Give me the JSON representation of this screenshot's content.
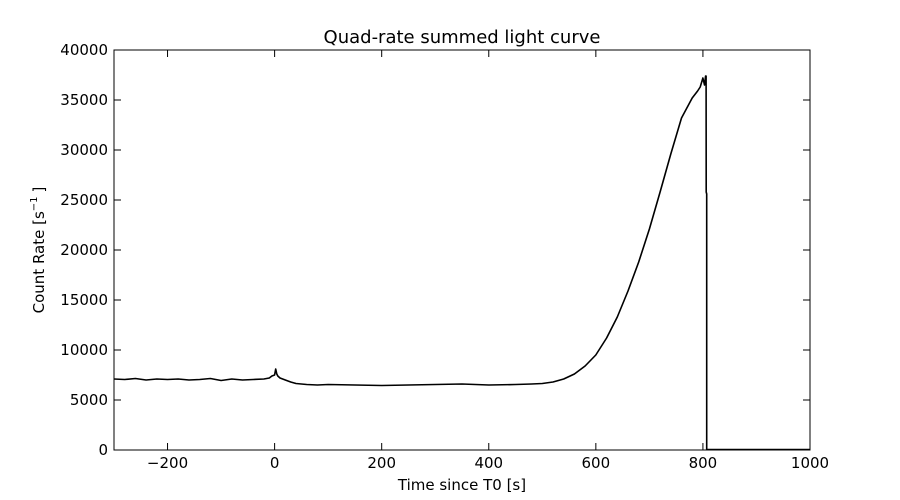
{
  "chart_data": {
    "type": "line",
    "title": "Quad-rate summed light curve",
    "xlabel": "Time since T0 [s]",
    "ylabel": "Count Rate [s",
    "ylabel_sup": "−1",
    "ylabel_tail": "]",
    "xlim": [
      -300,
      1000
    ],
    "ylim": [
      0,
      40000
    ],
    "xticks": [
      -200,
      0,
      200,
      400,
      600,
      800,
      1000
    ],
    "xtick_labels": [
      "−200",
      "0",
      "200",
      "400",
      "600",
      "800",
      "1000"
    ],
    "yticks": [
      0,
      5000,
      10000,
      15000,
      20000,
      25000,
      30000,
      35000,
      40000
    ],
    "ytick_labels": [
      "0",
      "5000",
      "10000",
      "15000",
      "20000",
      "25000",
      "30000",
      "35000",
      "40000"
    ],
    "grid": false,
    "line_color": "#000000",
    "series": [
      {
        "x": [
          -300,
          -280,
          -260,
          -240,
          -220,
          -200,
          -180,
          -160,
          -140,
          -120,
          -100,
          -80,
          -60,
          -40,
          -20,
          -10,
          -5,
          0,
          2,
          4,
          6,
          10,
          20,
          30,
          40,
          60,
          80,
          100,
          150,
          200,
          250,
          300,
          350,
          400,
          450,
          480,
          500,
          520,
          540,
          560,
          580,
          600,
          620,
          640,
          660,
          680,
          700,
          720,
          740,
          760,
          780,
          790,
          795,
          800,
          803,
          805,
          806,
          806.1,
          807,
          807.1,
          830,
          880,
          940,
          1000
        ],
        "y": [
          7100,
          7050,
          7150,
          7000,
          7100,
          7050,
          7100,
          7000,
          7050,
          7150,
          6950,
          7100,
          7000,
          7050,
          7100,
          7200,
          7400,
          7500,
          8100,
          7600,
          7400,
          7200,
          7000,
          6800,
          6650,
          6550,
          6500,
          6550,
          6500,
          6450,
          6500,
          6550,
          6600,
          6500,
          6550,
          6600,
          6650,
          6800,
          7100,
          7600,
          8400,
          9500,
          11200,
          13300,
          15900,
          18800,
          22100,
          25800,
          29600,
          33200,
          35200,
          35900,
          36300,
          37200,
          36500,
          37400,
          37400,
          25800,
          25600,
          50,
          40,
          40,
          40,
          40
        ]
      }
    ]
  }
}
